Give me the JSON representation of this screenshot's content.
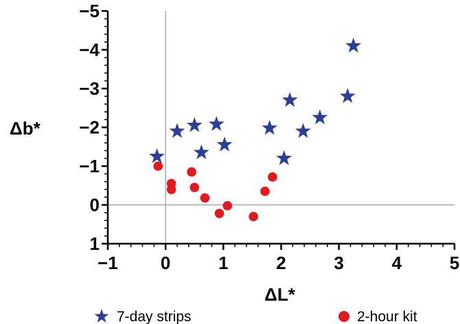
{
  "chart_data": {
    "type": "scatter",
    "title": "",
    "xlabel": "ΔL*",
    "ylabel": "Δb*",
    "xlim": [
      -1,
      5
    ],
    "ylim": [
      1,
      -5
    ],
    "y_axis_inverted": true,
    "reference_lines": {
      "x": 0,
      "y": 0
    },
    "grid": false,
    "legend_position": "bottom",
    "x_ticks": [
      -1,
      0,
      1,
      2,
      3,
      4,
      5
    ],
    "x_tick_labels": [
      "−1",
      "0",
      "1",
      "2",
      "3",
      "4",
      "5"
    ],
    "y_ticks": [
      -5,
      -4,
      -3,
      -2,
      -1,
      0,
      1
    ],
    "y_tick_labels": [
      "−5",
      "−4",
      "−3",
      "−2",
      "−1",
      "0",
      "1"
    ],
    "series": [
      {
        "name": "7-day strips",
        "marker": "star",
        "color": "#2b3f98",
        "points": [
          [
            -0.15,
            -1.25
          ],
          [
            0.2,
            -1.9
          ],
          [
            0.5,
            -2.05
          ],
          [
            0.62,
            -1.35
          ],
          [
            0.88,
            -2.08
          ],
          [
            1.02,
            -1.55
          ],
          [
            1.8,
            -1.98
          ],
          [
            2.05,
            -1.2
          ],
          [
            2.15,
            -2.7
          ],
          [
            2.38,
            -1.9
          ],
          [
            2.67,
            -2.25
          ],
          [
            3.15,
            -2.8
          ],
          [
            3.25,
            -4.1
          ]
        ]
      },
      {
        "name": "2-hour kit",
        "marker": "circle",
        "color": "#e3191f",
        "points": [
          [
            -0.13,
            -1.0
          ],
          [
            0.1,
            -0.55
          ],
          [
            0.1,
            -0.4
          ],
          [
            0.45,
            -0.85
          ],
          [
            0.5,
            -0.45
          ],
          [
            0.68,
            -0.18
          ],
          [
            0.93,
            0.22
          ],
          [
            1.07,
            0.02
          ],
          [
            1.52,
            0.3
          ],
          [
            1.72,
            -0.35
          ],
          [
            1.85,
            -0.72
          ]
        ]
      }
    ]
  }
}
